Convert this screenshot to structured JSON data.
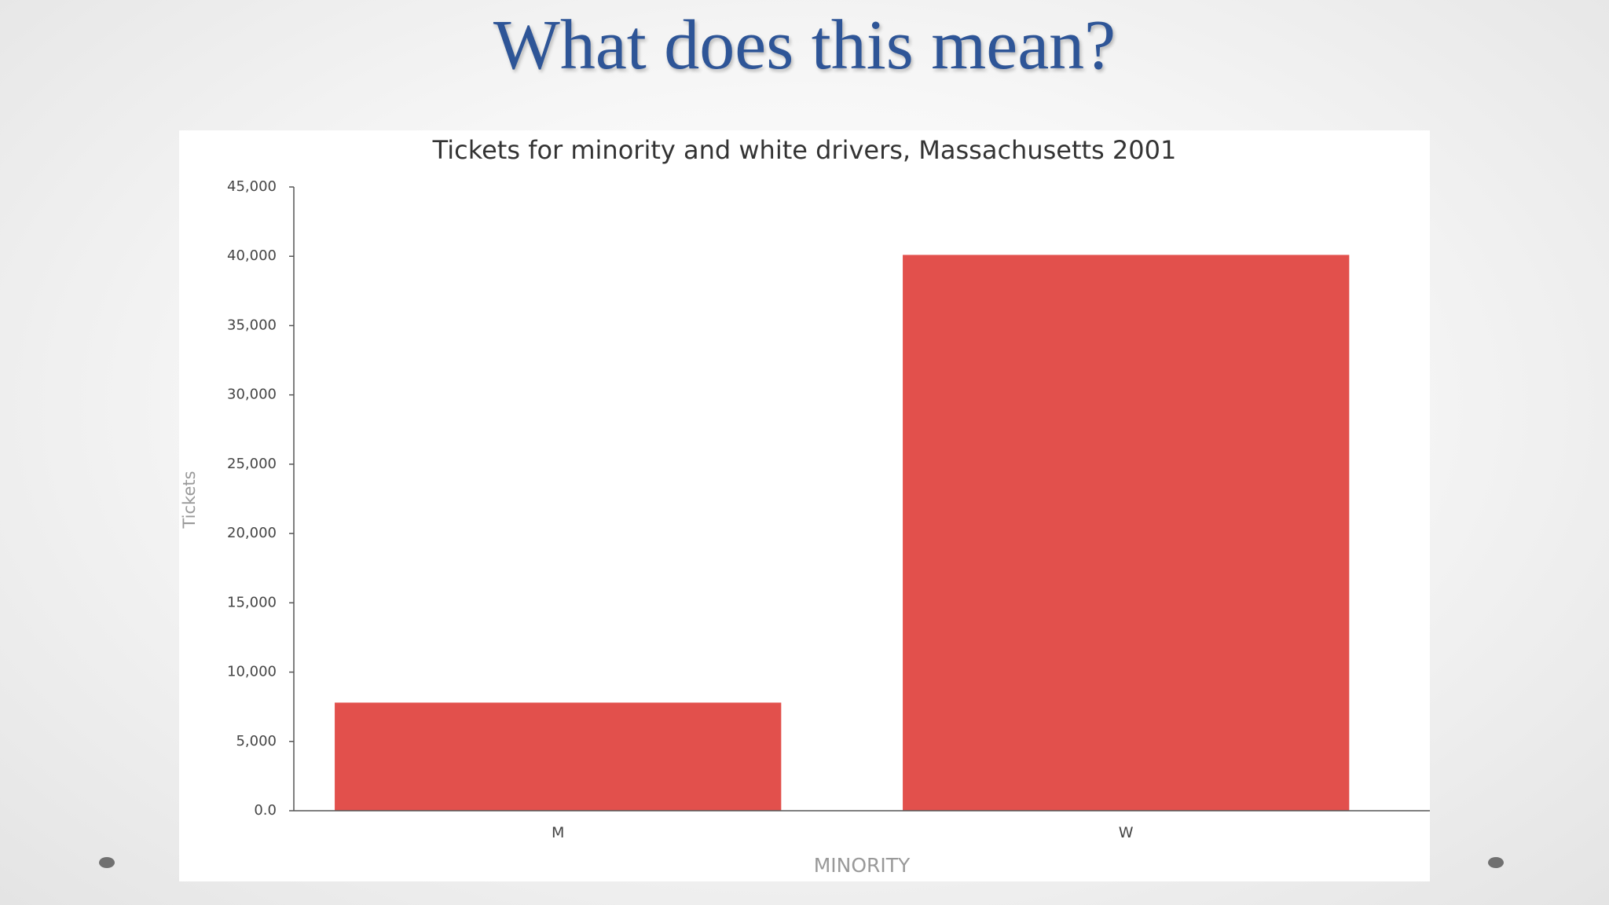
{
  "slide": {
    "title": "What does this mean?",
    "bullet_color": "#707070",
    "title_color": "#2e5597"
  },
  "chart_data": {
    "type": "bar",
    "title": "Tickets for minority and white drivers, Massachusetts 2001",
    "xlabel": "MINORITY",
    "ylabel": "Tickets",
    "categories": [
      "M",
      "W"
    ],
    "values": [
      7800,
      40100
    ],
    "ylim": [
      0,
      45000
    ],
    "yticks": [
      {
        "value": 0,
        "label": "0.0"
      },
      {
        "value": 5000,
        "label": "5,000"
      },
      {
        "value": 10000,
        "label": "10,000"
      },
      {
        "value": 15000,
        "label": "15,000"
      },
      {
        "value": 20000,
        "label": "20,000"
      },
      {
        "value": 25000,
        "label": "25,000"
      },
      {
        "value": 30000,
        "label": "30,000"
      },
      {
        "value": 35000,
        "label": "35,000"
      },
      {
        "value": 40000,
        "label": "40,000"
      },
      {
        "value": 45000,
        "label": "45,000"
      }
    ],
    "bar_color": "#e2504c",
    "grid": false,
    "legend": "none"
  }
}
